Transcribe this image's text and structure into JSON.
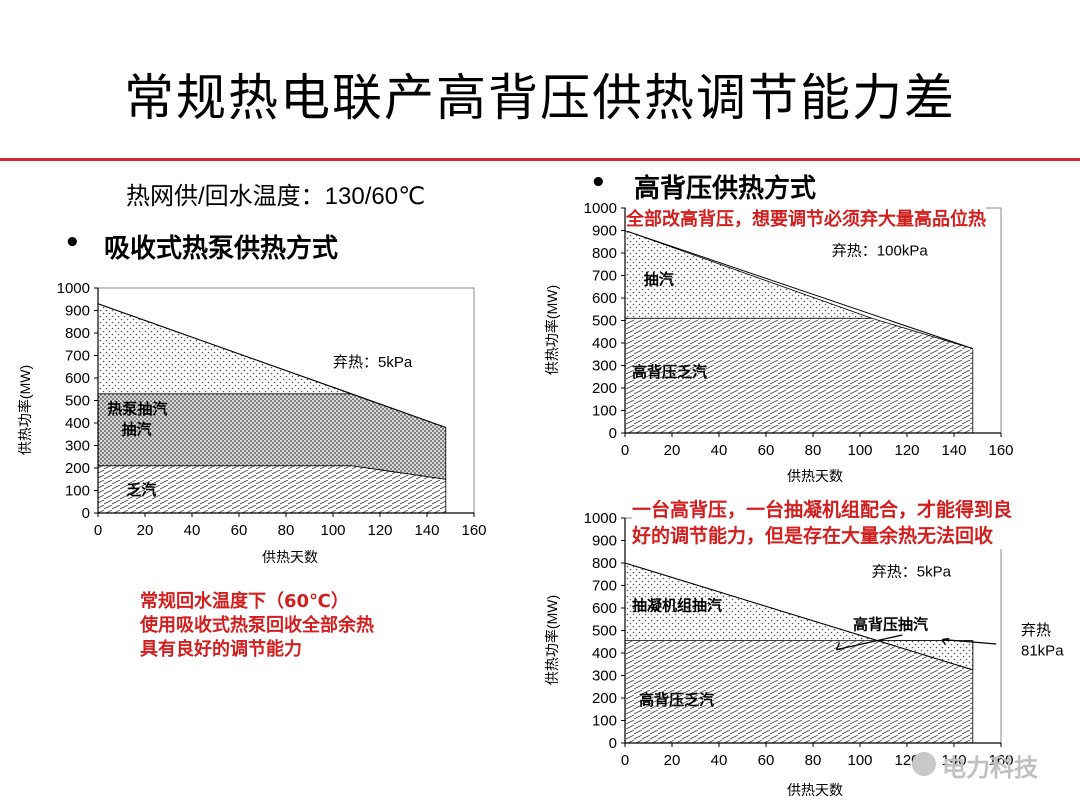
{
  "title": "常规热电联产高背压供热调节能力差",
  "left": {
    "temp_note": "热网供/回水温度：130/60℃",
    "heading": "吸收式热泵供热方式",
    "annotation_lines": [
      "常规回水温度下（60℃）",
      "使用吸收式热泵回收全部余热",
      "具有良好的调节能力"
    ]
  },
  "right_top": {
    "heading": "高背压供热方式",
    "annotation": "全部改高背压，想要调节必须弃大量高品位热"
  },
  "right_bottom": {
    "annotation_lines": [
      "一台高背压，一台抽凝机组配合，才能得到良",
      "好的调节能力，但是存在大量余热无法回收"
    ]
  },
  "bullet_symbol": "•",
  "watermark": "电力科技",
  "chart_data": [
    {
      "id": "chart-heat-pump",
      "type": "area",
      "ylabel": "供热功率(MW)",
      "xlabel": "供热天数",
      "xlim": [
        0,
        160
      ],
      "ylim": [
        0,
        1000
      ],
      "xticks": [
        "0",
        "20",
        "40",
        "60",
        "80",
        "100",
        "120",
        "140",
        "160"
      ],
      "yticks": [
        "0",
        "100",
        "200",
        "300",
        "400",
        "500",
        "600",
        "700",
        "800",
        "900",
        "1000"
      ],
      "series": [
        {
          "name": "抽汽",
          "points": [
            [
              0,
              930
            ],
            [
              148,
              380
            ]
          ]
        },
        {
          "name": "热泵抽汽",
          "points": [
            [
              0,
              530
            ],
            [
              108,
              530
            ],
            [
              148,
              380
            ]
          ]
        },
        {
          "name": "乏汽",
          "points": [
            [
              0,
              210
            ],
            [
              108,
              210
            ],
            [
              148,
              150
            ]
          ]
        }
      ],
      "note": "弃热：5kPa"
    },
    {
      "id": "chart-high-backpressure",
      "type": "area",
      "ylabel": "供热功率(MW)",
      "xlabel": "供热天数",
      "xlim": [
        0,
        160
      ],
      "ylim": [
        0,
        1000
      ],
      "xticks": [
        "0",
        "20",
        "40",
        "60",
        "80",
        "100",
        "120",
        "140",
        "160"
      ],
      "yticks": [
        "0",
        "100",
        "200",
        "300",
        "400",
        "500",
        "600",
        "700",
        "800",
        "900",
        "1000"
      ],
      "series": [
        {
          "name": "抽汽",
          "points": [
            [
              0,
              900
            ],
            [
              148,
              375
            ]
          ]
        },
        {
          "name": "高背压乏汽",
          "points": [
            [
              0,
              510
            ],
            [
              105,
              510
            ],
            [
              148,
              375
            ]
          ]
        }
      ],
      "note": "弃热：100kPa"
    },
    {
      "id": "chart-combined",
      "type": "area",
      "ylabel": "供热功率(MW)",
      "xlabel": "供热天数",
      "xlim": [
        0,
        160
      ],
      "ylim": [
        0,
        1000
      ],
      "xticks": [
        "0",
        "20",
        "40",
        "60",
        "80",
        "100",
        "120",
        "140",
        "160"
      ],
      "yticks": [
        "0",
        "100",
        "200",
        "300",
        "400",
        "500",
        "600",
        "700",
        "800",
        "900",
        "1000"
      ],
      "series": [
        {
          "name": "抽凝机组抽汽",
          "points": [
            [
              0,
              800
            ],
            [
              148,
              325
            ]
          ]
        },
        {
          "name": "高背压抽汽",
          "points": [
            [
              0,
              455
            ],
            [
              148,
              455
            ],
            [
              148,
              325
            ]
          ]
        },
        {
          "name": "高背压乏汽",
          "points": [
            [
              0,
              455
            ],
            [
              148,
              455
            ]
          ]
        }
      ],
      "note": "弃热：5kPa",
      "side_note": [
        "弃热",
        "81kPa"
      ]
    }
  ]
}
